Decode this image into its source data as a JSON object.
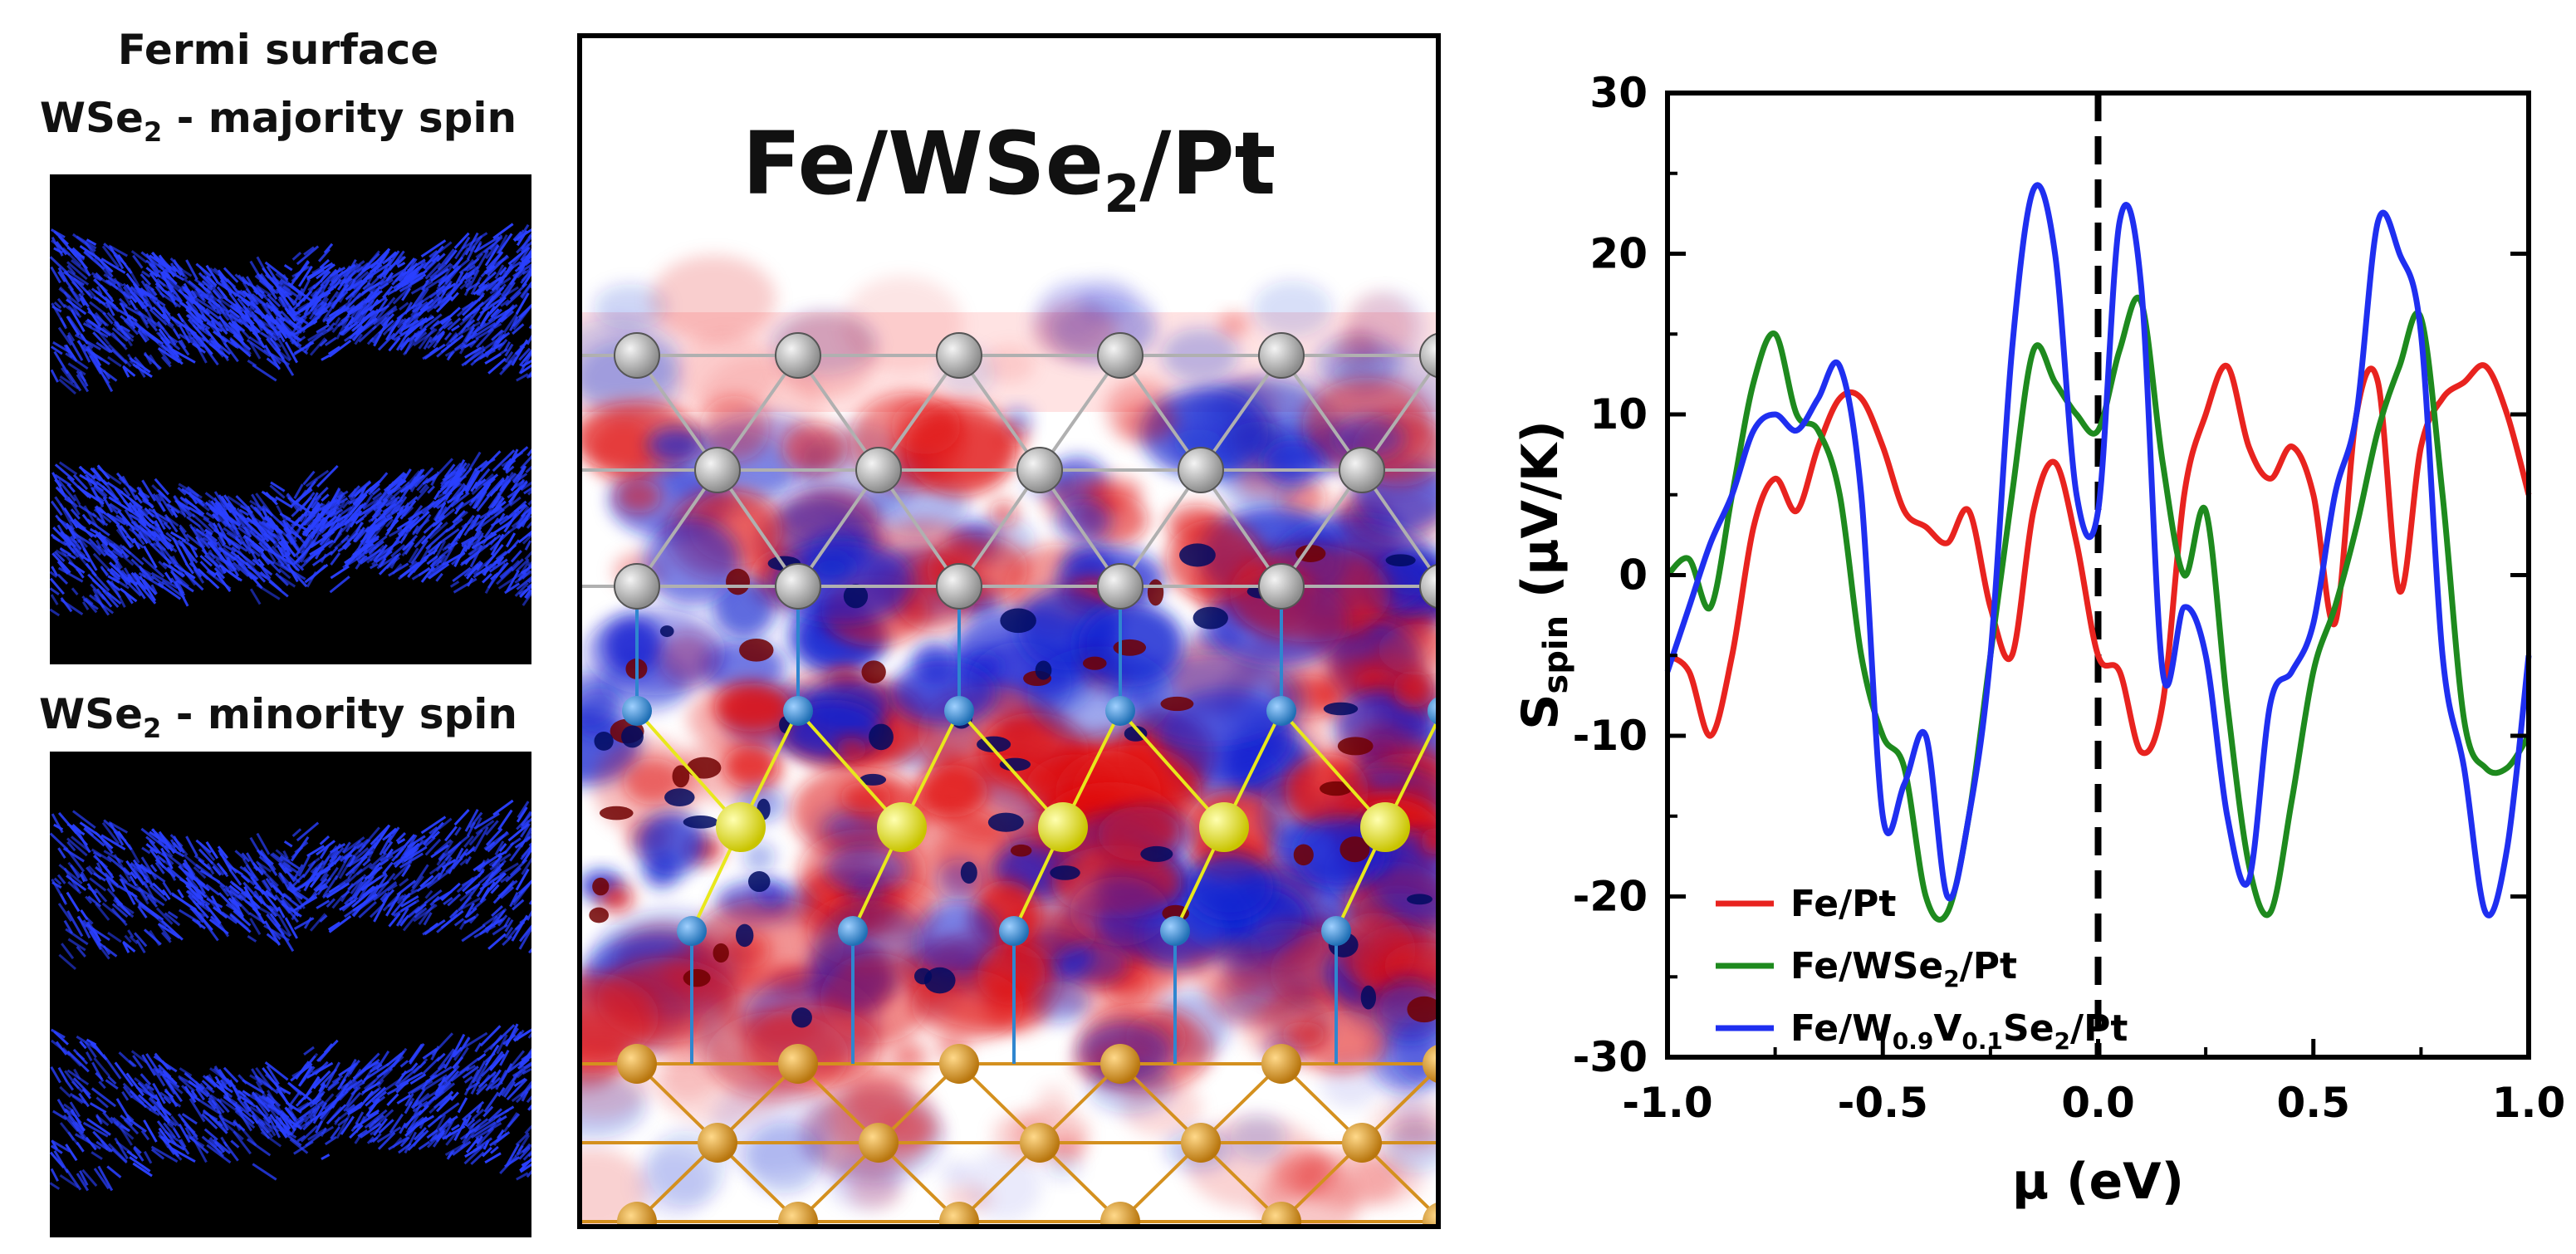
{
  "left_panel": {
    "title": "Fermi surface",
    "majority_label_prefix": "WSe",
    "majority_label_sub": "2",
    "majority_label_suffix": " - majority spin",
    "minority_label_prefix": "WSe",
    "minority_label_sub": "2",
    "minority_label_suffix": " - minority spin"
  },
  "center_panel": {
    "title_prefix": "Fe/WSe",
    "title_sub": "2",
    "title_suffix": "/Pt"
  },
  "colors": {
    "fe_pt": "#e8231f",
    "fe_wse2_pt": "#1e8a1e",
    "fe_wvse2_pt": "#1f2ff0",
    "pt_atom": "#a9a9a9",
    "w_atom": "#e8e81c",
    "se_atom": "#2f86cf",
    "fe_atom": "#d4901e",
    "fermi_line": "#2a40ff"
  },
  "chart_data": {
    "type": "line",
    "title": "",
    "xlabel": "μ (eV)",
    "ylabel_main": "S",
    "ylabel_sub": "spin",
    "ylabel_unit": " (μV/K)",
    "xlim": [
      -1.0,
      1.0
    ],
    "ylim": [
      -30,
      30
    ],
    "x_ticks": [
      -1.0,
      -0.5,
      0.0,
      0.5,
      1.0
    ],
    "x_tick_labels": [
      "-1.0",
      "-0.5",
      "0.0",
      "0.5",
      "1.0"
    ],
    "y_ticks": [
      -30,
      -20,
      -10,
      0,
      10,
      20,
      30
    ],
    "y_tick_labels": [
      "-30",
      "-20",
      "-10",
      "0",
      "10",
      "20",
      "30"
    ],
    "vline_x": 0.0,
    "legend_position": "bottom-left",
    "series": [
      {
        "name": "Fe/Pt",
        "legend_prefix": "Fe/Pt",
        "legend_sub": "",
        "legend_mid": "",
        "legend_sub2": "",
        "legend_suffix": "",
        "color": "#e8231f",
        "x": [
          -1.0,
          -0.95,
          -0.9,
          -0.85,
          -0.8,
          -0.75,
          -0.7,
          -0.65,
          -0.6,
          -0.55,
          -0.5,
          -0.45,
          -0.4,
          -0.35,
          -0.3,
          -0.25,
          -0.2,
          -0.15,
          -0.1,
          -0.05,
          0.0,
          0.05,
          0.1,
          0.15,
          0.2,
          0.25,
          0.3,
          0.35,
          0.4,
          0.45,
          0.5,
          0.55,
          0.6,
          0.65,
          0.7,
          0.75,
          0.8,
          0.85,
          0.9,
          0.95,
          1.0
        ],
        "y": [
          -5,
          -6,
          -10,
          -5,
          3,
          6,
          4,
          8,
          11,
          11,
          8,
          4,
          3,
          2,
          4,
          -2,
          -5,
          4,
          7,
          2,
          -5,
          -6,
          -11,
          -8,
          5,
          10,
          13,
          8,
          6,
          8,
          5,
          -3,
          10,
          12,
          -1,
          8,
          11,
          12,
          13,
          10,
          5
        ]
      },
      {
        "name": "Fe/WSe2/Pt",
        "legend_prefix": "Fe/WSe",
        "legend_sub": "2",
        "legend_mid": "/Pt",
        "legend_sub2": "",
        "legend_suffix": "",
        "color": "#1e8a1e",
        "x": [
          -1.0,
          -0.95,
          -0.9,
          -0.85,
          -0.8,
          -0.75,
          -0.7,
          -0.65,
          -0.6,
          -0.55,
          -0.5,
          -0.45,
          -0.4,
          -0.35,
          -0.3,
          -0.25,
          -0.2,
          -0.15,
          -0.1,
          -0.05,
          0.0,
          0.05,
          0.1,
          0.15,
          0.2,
          0.25,
          0.3,
          0.35,
          0.4,
          0.45,
          0.5,
          0.55,
          0.6,
          0.65,
          0.7,
          0.75,
          0.8,
          0.85,
          0.9,
          0.95,
          1.0
        ],
        "y": [
          0,
          1,
          -2,
          5,
          12,
          15,
          10,
          9,
          5,
          -5,
          -10,
          -12,
          -20,
          -21,
          -15,
          -5,
          5,
          14,
          12,
          10,
          9,
          14,
          17,
          7,
          0,
          4,
          -8,
          -18,
          -21,
          -14,
          -6,
          -2,
          3,
          9,
          13,
          16,
          5,
          -9,
          -12,
          -12,
          -10
        ]
      },
      {
        "name": "Fe/W0.9V0.1Se2/Pt",
        "legend_prefix": "Fe/W",
        "legend_sub": "0.9",
        "legend_mid": "V",
        "legend_sub2": "0.1",
        "legend_suffix": "Se",
        "legend_sub3": "2",
        "legend_end": "/Pt",
        "color": "#1f2ff0",
        "x": [
          -1.0,
          -0.95,
          -0.9,
          -0.85,
          -0.8,
          -0.75,
          -0.7,
          -0.65,
          -0.6,
          -0.55,
          -0.5,
          -0.45,
          -0.4,
          -0.35,
          -0.3,
          -0.25,
          -0.2,
          -0.15,
          -0.1,
          -0.05,
          0.0,
          0.05,
          0.1,
          0.15,
          0.2,
          0.25,
          0.3,
          0.35,
          0.4,
          0.45,
          0.5,
          0.55,
          0.6,
          0.65,
          0.7,
          0.75,
          0.8,
          0.85,
          0.9,
          0.95,
          1.0
        ],
        "y": [
          -6,
          -2,
          2,
          5,
          9,
          10,
          9,
          11,
          13,
          5,
          -15,
          -13,
          -10,
          -20,
          -15,
          -5,
          14,
          24,
          20,
          5,
          4,
          22,
          18,
          -6,
          -2,
          -5,
          -15,
          -19,
          -8,
          -6,
          -3,
          5,
          10,
          22,
          20,
          15,
          -5,
          -12,
          -21,
          -17,
          -5
        ]
      }
    ]
  }
}
